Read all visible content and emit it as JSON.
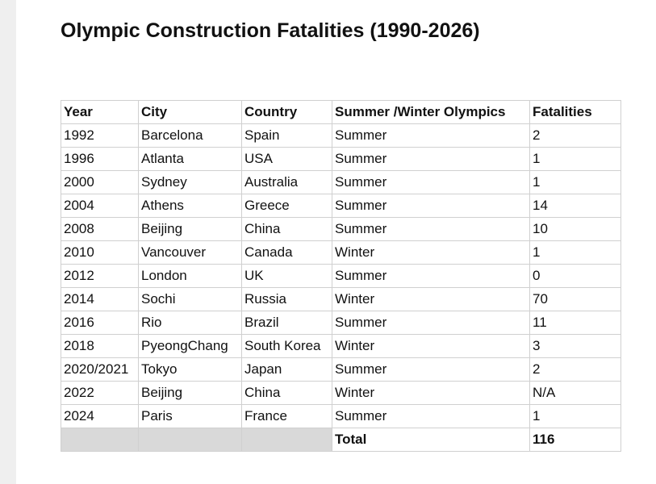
{
  "header": {
    "title": "Olympic Construction Fatalities (1990-2026)"
  },
  "table": {
    "columns": [
      "Year",
      "City",
      "Country",
      "Summer /Winter Olympics",
      "Fatalities"
    ],
    "rows": [
      [
        "1992",
        "Barcelona",
        "Spain",
        "Summer",
        "2"
      ],
      [
        "1996",
        "Atlanta",
        "USA",
        "Summer",
        "1"
      ],
      [
        "2000",
        "Sydney",
        "Australia",
        "Summer",
        "1"
      ],
      [
        "2004",
        "Athens",
        "Greece",
        "Summer",
        "14"
      ],
      [
        "2008",
        "Beijing",
        "China",
        "Summer",
        "10"
      ],
      [
        "2010",
        "Vancouver",
        "Canada",
        "Winter",
        "1"
      ],
      [
        "2012",
        "London",
        "UK",
        "Summer",
        "0"
      ],
      [
        "2014",
        "Sochi",
        "Russia",
        "Winter",
        "70"
      ],
      [
        "2016",
        "Rio",
        "Brazil",
        "Summer",
        "11"
      ],
      [
        "2018",
        "PyeongChang",
        "South Korea",
        "Winter",
        "3"
      ],
      [
        "2020/2021",
        "Tokyo",
        "Japan",
        "Summer",
        "2"
      ],
      [
        "2022",
        "Beijing",
        "China",
        "Winter",
        "N/A"
      ],
      [
        "2024",
        "Paris",
        "France",
        "Summer",
        "1"
      ]
    ],
    "total": {
      "label": "Total",
      "value": "116"
    }
  }
}
